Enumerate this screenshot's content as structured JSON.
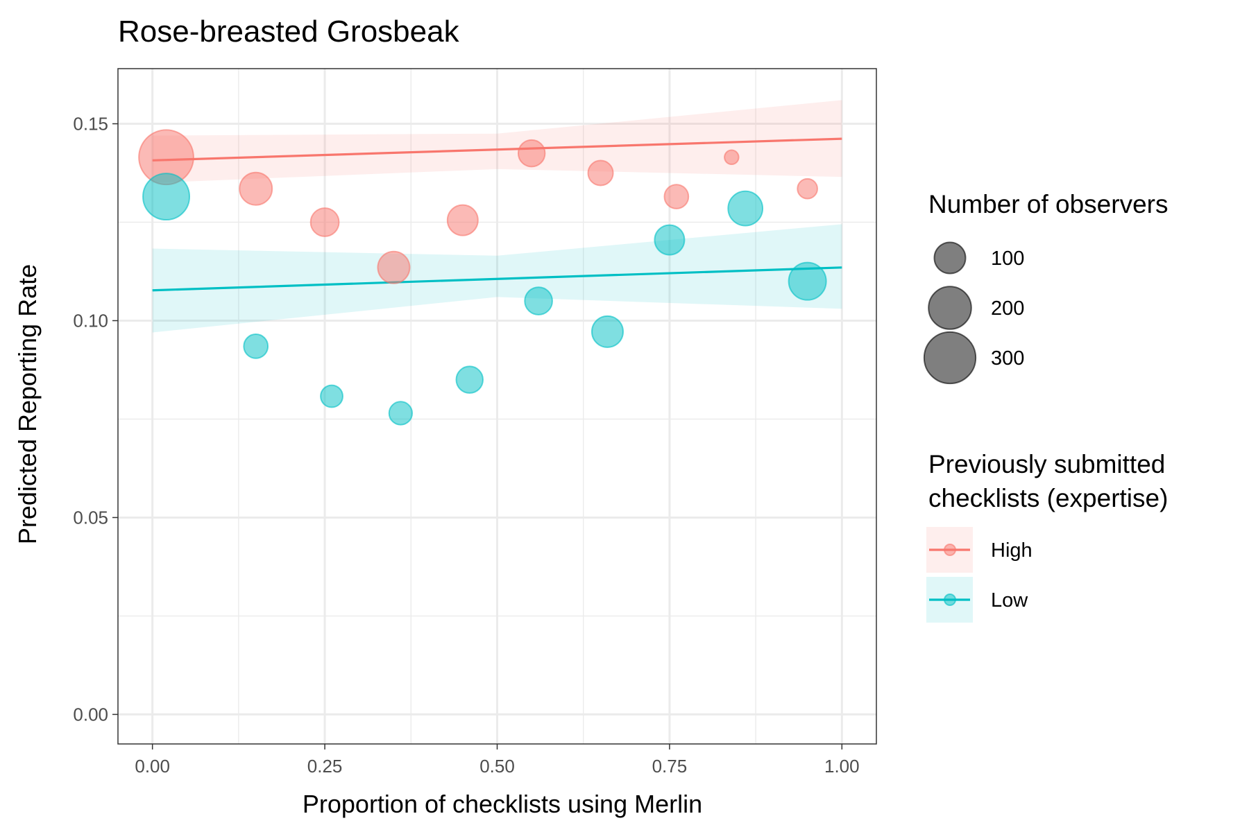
{
  "chart_data": {
    "type": "scatter",
    "title": "Rose-breasted Grosbeak",
    "xlabel": "Proportion of checklists using Merlin",
    "ylabel": "Predicted Reporting Rate",
    "xlim": [
      -0.05,
      1.05
    ],
    "ylim": [
      -0.0075,
      0.164
    ],
    "x_ticks": [
      {
        "value": 0.0,
        "label": "0.00"
      },
      {
        "value": 0.25,
        "label": "0.25"
      },
      {
        "value": 0.5,
        "label": "0.50"
      },
      {
        "value": 0.75,
        "label": "0.75"
      },
      {
        "value": 1.0,
        "label": "1.00"
      }
    ],
    "y_ticks": [
      {
        "value": 0.0,
        "label": "0.00"
      },
      {
        "value": 0.05,
        "label": "0.05"
      },
      {
        "value": 0.1,
        "label": "0.10"
      },
      {
        "value": 0.15,
        "label": "0.15"
      }
    ],
    "grid": true,
    "size_legend": {
      "title": "Number of observers",
      "entries": [
        {
          "value": 100,
          "label": "100"
        },
        {
          "value": 200,
          "label": "200"
        },
        {
          "value": 300,
          "label": "300"
        }
      ]
    },
    "color_legend": {
      "title_lines": [
        "Previously submitted",
        "checklists (expertise)"
      ],
      "placement": "right"
    },
    "series": [
      {
        "name": "High",
        "color": "#F8766D",
        "points": [
          {
            "x": 0.02,
            "y": 0.1415,
            "size": 340
          },
          {
            "x": 0.15,
            "y": 0.1335,
            "size": 110
          },
          {
            "x": 0.25,
            "y": 0.125,
            "size": 80
          },
          {
            "x": 0.35,
            "y": 0.1135,
            "size": 105
          },
          {
            "x": 0.45,
            "y": 0.1255,
            "size": 95
          },
          {
            "x": 0.55,
            "y": 0.1425,
            "size": 70
          },
          {
            "x": 0.65,
            "y": 0.1375,
            "size": 60
          },
          {
            "x": 0.76,
            "y": 0.1315,
            "size": 55
          },
          {
            "x": 0.84,
            "y": 0.1415,
            "size": 15
          },
          {
            "x": 0.95,
            "y": 0.1335,
            "size": 35
          }
        ],
        "fit": {
          "x": [
            0.0,
            1.0
          ],
          "y": [
            0.1407,
            0.1462
          ]
        },
        "band": {
          "x": [
            0.0,
            0.5,
            1.0
          ],
          "lower": [
            0.135,
            0.1385,
            0.1365
          ],
          "upper": [
            0.147,
            0.1475,
            0.156
          ]
        }
      },
      {
        "name": "Low",
        "color": "#00BFC4",
        "points": [
          {
            "x": 0.02,
            "y": 0.1315,
            "size": 240
          },
          {
            "x": 0.15,
            "y": 0.0935,
            "size": 55
          },
          {
            "x": 0.26,
            "y": 0.0808,
            "size": 45
          },
          {
            "x": 0.36,
            "y": 0.0765,
            "size": 50
          },
          {
            "x": 0.46,
            "y": 0.085,
            "size": 70
          },
          {
            "x": 0.56,
            "y": 0.105,
            "size": 75
          },
          {
            "x": 0.66,
            "y": 0.0972,
            "size": 100
          },
          {
            "x": 0.75,
            "y": 0.1205,
            "size": 90
          },
          {
            "x": 0.86,
            "y": 0.1285,
            "size": 125
          },
          {
            "x": 0.95,
            "y": 0.11,
            "size": 150
          }
        ],
        "fit": {
          "x": [
            0.0,
            1.0
          ],
          "y": [
            0.1077,
            0.1135
          ]
        },
        "band": {
          "x": [
            0.0,
            0.5,
            1.0
          ],
          "lower": [
            0.097,
            0.106,
            0.103
          ],
          "upper": [
            0.1183,
            0.1165,
            0.1245
          ]
        }
      }
    ]
  }
}
